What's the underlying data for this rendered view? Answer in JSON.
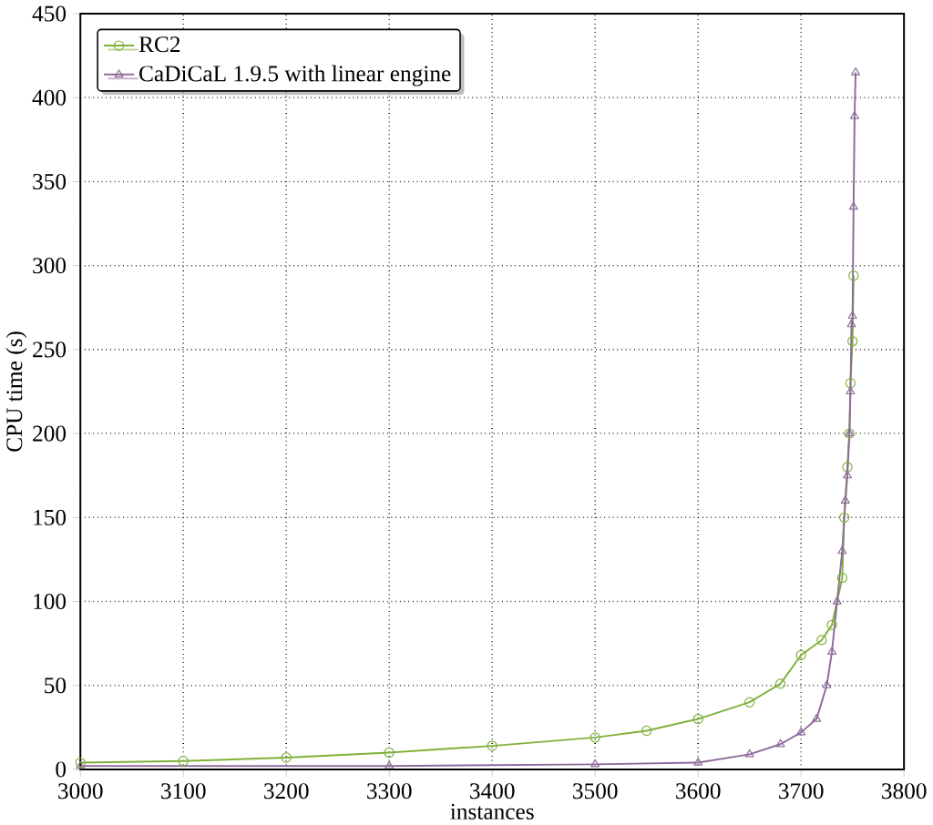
{
  "chart_data": {
    "type": "line",
    "xlabel": "instances",
    "ylabel": "CPU time (s)",
    "xlim": [
      3000,
      3800
    ],
    "ylim": [
      0,
      450
    ],
    "xticks": [
      3000,
      3100,
      3200,
      3300,
      3400,
      3500,
      3600,
      3700,
      3800
    ],
    "yticks": [
      0,
      50,
      100,
      150,
      200,
      250,
      300,
      350,
      400,
      450
    ],
    "grid": true,
    "legend": "top left",
    "line_style": "solid",
    "series": [
      {
        "name": "RC2",
        "color": "#7fb13a",
        "marker": "circle",
        "x": [
          3000,
          3100,
          3200,
          3300,
          3400,
          3500,
          3550,
          3600,
          3650,
          3680,
          3700,
          3720,
          3730,
          3740,
          3742,
          3745,
          3747,
          3748,
          3750,
          3751
        ],
        "values": [
          4,
          5,
          7,
          10,
          14,
          19,
          23,
          30,
          40,
          51,
          68,
          77,
          86,
          114,
          150,
          180,
          200,
          230,
          255,
          294
        ]
      },
      {
        "name": "CaDiCaL 1.9.5 with linear engine",
        "color": "#8e6b9a",
        "marker": "triangle",
        "x": [
          3000,
          3300,
          3500,
          3600,
          3650,
          3680,
          3700,
          3715,
          3725,
          3730,
          3735,
          3740,
          3743,
          3745,
          3747,
          3748,
          3749,
          3750,
          3751,
          3752,
          3753
        ],
        "values": [
          2,
          2,
          3,
          4,
          9,
          15,
          22,
          30,
          50,
          70,
          100,
          130,
          160,
          175,
          200,
          225,
          265,
          270,
          335,
          389,
          415
        ]
      }
    ]
  }
}
